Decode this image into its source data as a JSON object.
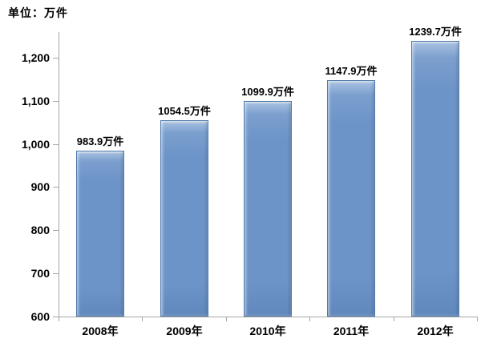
{
  "chart_data": {
    "type": "bar",
    "title": "单位：万件",
    "categories": [
      "2008年",
      "2009年",
      "2010年",
      "2011年",
      "2012年"
    ],
    "values": [
      983.9,
      1054.5,
      1099.9,
      1147.9,
      1239.7
    ],
    "bar_labels": [
      "983.9万件",
      "1054.5万件",
      "1099.9万件",
      "1147.9万件",
      "1239.7万件"
    ],
    "y_ticks": [
      600,
      700,
      800,
      900,
      1000,
      1100,
      1200
    ],
    "y_tick_labels": [
      "600",
      "700",
      "800",
      "900",
      "1,000",
      "1,100",
      "1,200"
    ],
    "ylim": [
      600,
      1250
    ],
    "xlabel": "",
    "ylabel": "",
    "grid": false,
    "legend": false,
    "colors": {
      "bar_fill": "#6d94c8",
      "bar_border": "#4f7aad",
      "axis": "#a6a6a6",
      "text": "#000000",
      "background": "#ffffff"
    }
  }
}
